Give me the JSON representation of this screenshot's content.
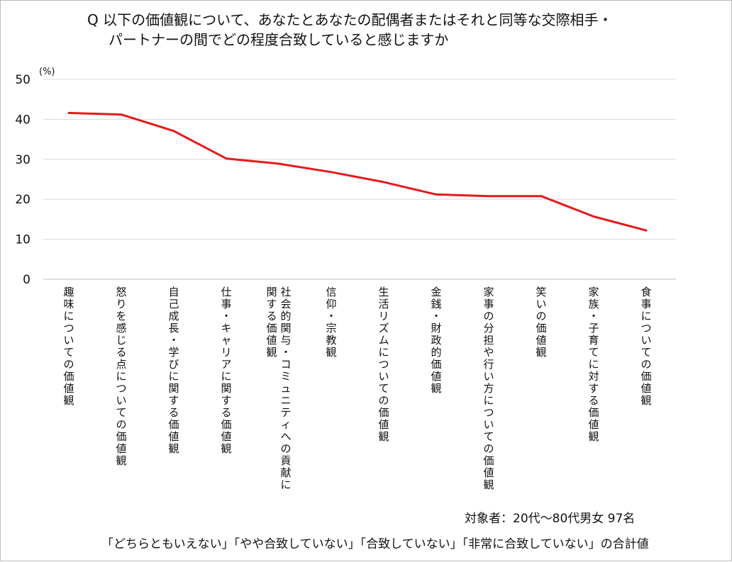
{
  "title": {
    "line1": "Q 以下の価値観について、あなたとあなたの配偶者またはそれと同等な交際相手・",
    "line2": "パートナーの間でどの程度合致していると感じますか"
  },
  "notes": {
    "target": "対象者：20代～80代男女 97名",
    "definition": "「どちらともいえない」「やや合致していない」「合致していない」「非常に合致していない」の合計値"
  },
  "chart_data": {
    "type": "line",
    "y_unit": "(%)",
    "ylim": [
      0,
      50
    ],
    "y_ticks": [
      "0",
      "10",
      "20",
      "30",
      "40",
      "50"
    ],
    "grid": true,
    "categories": [
      "趣味についての価値観",
      "怒りを感じる点についての価値観",
      "自己成長・学びに関する価値観",
      "仕事・キャリアに関する価値観",
      "社会的関与・コミュニティへの貢献に関する価値観",
      "信仰・宗教観",
      "生活リズムについての価値観",
      "金銭・財政的価値観",
      "家事の分担や行い方についての価値観",
      "笑いの価値観",
      "家族・子育てに対する価値観",
      "食事についての価値観"
    ],
    "category_lines": [
      [
        "趣味についての価値観"
      ],
      [
        "怒りを感じる点についての価値観"
      ],
      [
        "自己成長・学びに関する価値観"
      ],
      [
        "仕事・キャリアに関する価値観"
      ],
      [
        "社会的関与・コミュニティへの貢献に",
        "関する価値観"
      ],
      [
        "信仰・宗教観"
      ],
      [
        "生活リズムについての価値観"
      ],
      [
        "金銭・財政的価値観"
      ],
      [
        "家事の分担や行い方についての価値観"
      ],
      [
        "笑いの価値観"
      ],
      [
        "家族・子育てに対する価値観"
      ],
      [
        "食事についての価値観"
      ]
    ],
    "series": [
      {
        "color": "#e41a1c",
        "values": [
          41.6,
          41.2,
          37.1,
          30.2,
          28.9,
          26.8,
          24.3,
          21.2,
          20.8,
          20.8,
          15.7,
          12.2
        ]
      }
    ]
  }
}
